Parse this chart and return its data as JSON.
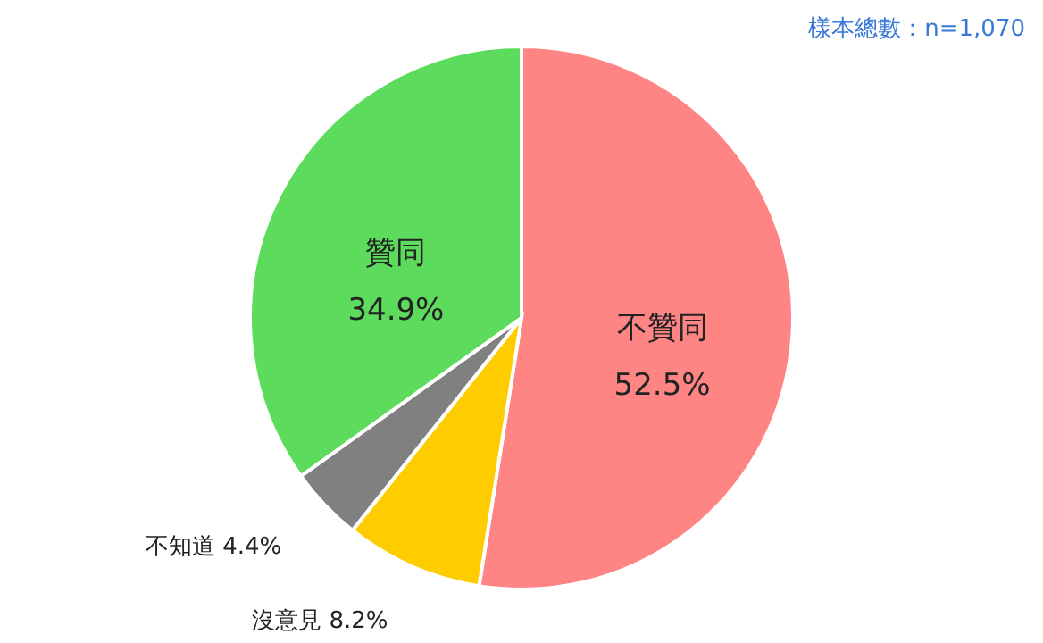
{
  "chart_data": {
    "type": "pie",
    "categories": [
      "不贊同",
      "沒意見",
      "不知道",
      "贊同"
    ],
    "values": [
      52.5,
      8.2,
      4.4,
      34.9
    ],
    "value_labels": [
      "52.5%",
      "8.2%",
      "4.4%",
      "34.9%"
    ],
    "colors": [
      "#ff8585",
      "#ffcc00",
      "#808080",
      "#5cdb5c"
    ],
    "annotations": [
      "樣本總數：n=1,070"
    ]
  }
}
